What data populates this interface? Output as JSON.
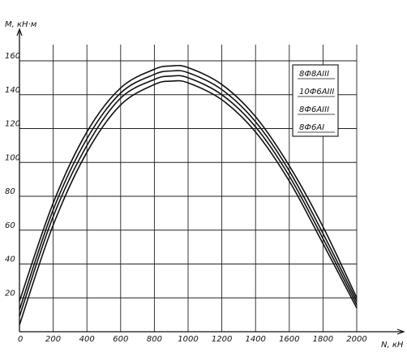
{
  "chart_data": {
    "type": "line",
    "title": "",
    "xlabel": "N, кН",
    "ylabel": "M, кН·м",
    "xlim": [
      0,
      2000
    ],
    "ylim": [
      0,
      160
    ],
    "grid": true,
    "legend_position": "top-right",
    "x_ticks": [
      "0",
      "200",
      "400",
      "600",
      "800",
      "1000",
      "1200",
      "1400",
      "1600",
      "1800",
      "2000"
    ],
    "y_ticks": [
      "20",
      "40",
      "60",
      "80",
      "100",
      "120",
      "140",
      "160"
    ],
    "series": [
      {
        "name": "8Ф8АIII",
        "x": [
          0,
          200,
          400,
          600,
          800,
          900,
          1000,
          1200,
          1400,
          1600,
          1800,
          2000
        ],
        "y": [
          18,
          76,
          118,
          144,
          155,
          157,
          156,
          146,
          127,
          98,
          62,
          20
        ]
      },
      {
        "name": "10Ф6АIII",
        "x": [
          0,
          200,
          400,
          600,
          800,
          900,
          1000,
          1200,
          1400,
          1600,
          1800,
          2000
        ],
        "y": [
          13,
          72,
          114,
          141,
          152,
          154,
          153,
          143,
          124,
          95,
          58,
          18
        ]
      },
      {
        "name": "8Ф6АIII",
        "x": [
          0,
          200,
          400,
          600,
          800,
          900,
          1000,
          1200,
          1400,
          1600,
          1800,
          2000
        ],
        "y": [
          9,
          68,
          110,
          138,
          149,
          151,
          150,
          140,
          121,
          92,
          55,
          16
        ]
      },
      {
        "name": "8Ф6АI",
        "x": [
          0,
          200,
          400,
          600,
          800,
          900,
          1000,
          1200,
          1400,
          1600,
          1800,
          2000
        ],
        "y": [
          4,
          63,
          106,
          134,
          146,
          148,
          147,
          137,
          118,
          89,
          52,
          14
        ]
      }
    ]
  }
}
